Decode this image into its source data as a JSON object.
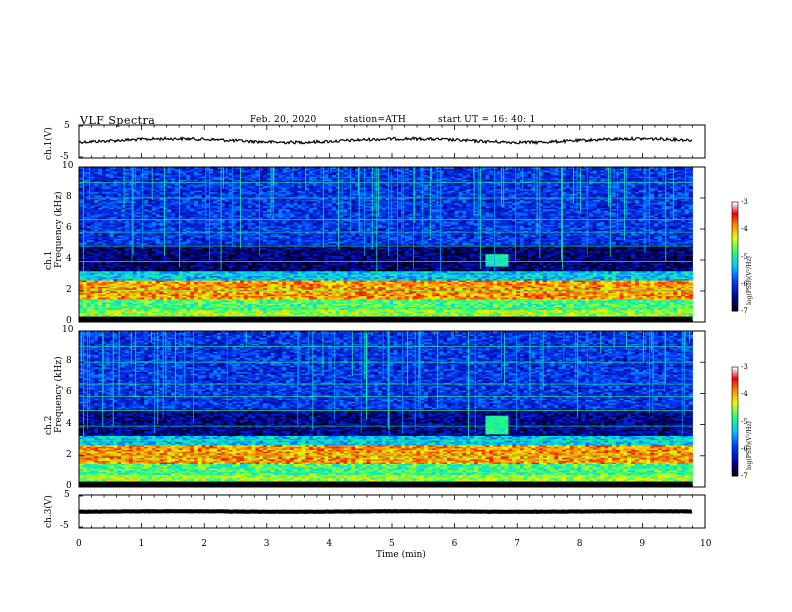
{
  "header": {
    "title": "VLF  Spectra",
    "date": "Feb. 20, 2020",
    "station": "station=ATH",
    "start": "start  UT  =    16: 40: 1"
  },
  "chart_data": [
    {
      "type": "line",
      "name": "ch1-waveform",
      "ylabel": "ch.1(V)",
      "ylim": [
        -5,
        5
      ],
      "ytick_labels": [
        "5",
        "-5"
      ],
      "x_range_min": [
        0,
        9.8
      ],
      "approx_level_v": 0.3
    },
    {
      "type": "heatmap",
      "name": "ch1-spectrogram",
      "ylabel": "ch.1\nFrequency  (kHz)",
      "ylim": [
        0,
        10
      ],
      "ytick_labels": [
        "0",
        "2",
        "4",
        "6",
        "8",
        "10"
      ],
      "xlim": [
        0,
        10
      ],
      "data_end_min": 9.8,
      "colorbar": {
        "label": "log(PSD)(V²/Hz)",
        "range": [
          -7,
          -3
        ],
        "tick_labels": [
          "-3",
          "-4",
          "-5",
          "-6",
          "-7"
        ]
      },
      "bands_khz": [
        {
          "from": 0.0,
          "to": 0.8,
          "level": -4.5
        },
        {
          "from": 0.8,
          "to": 1.5,
          "level": -4.8
        },
        {
          "from": 1.5,
          "to": 2.7,
          "level": -3.9
        },
        {
          "from": 2.7,
          "to": 3.3,
          "level": -5.3
        },
        {
          "from": 3.3,
          "to": 5.0,
          "level": -6.6
        },
        {
          "from": 5.0,
          "to": 10.0,
          "level": -6.0
        }
      ],
      "event": {
        "t_from_min": 6.45,
        "t_to_min": 6.8,
        "f_from_khz": 3.6,
        "f_to_khz": 4.3,
        "level": -5.0
      }
    },
    {
      "type": "heatmap",
      "name": "ch2-spectrogram",
      "ylabel": "ch.2\nFrequency  (kHz)",
      "ylim": [
        0,
        10
      ],
      "ytick_labels": [
        "0",
        "2",
        "4",
        "6",
        "8",
        "10"
      ],
      "xlim": [
        0,
        10
      ],
      "data_end_min": 9.8,
      "colorbar": {
        "label": "log(PSD)(V²/Hz)",
        "range": [
          -7,
          -3
        ],
        "tick_labels": [
          "-3",
          "-4",
          "-5",
          "-6",
          "-7"
        ]
      },
      "bands_khz": [
        {
          "from": 0.0,
          "to": 0.8,
          "level": -4.5
        },
        {
          "from": 0.8,
          "to": 1.5,
          "level": -4.8
        },
        {
          "from": 1.5,
          "to": 2.7,
          "level": -3.9
        },
        {
          "from": 2.7,
          "to": 3.3,
          "level": -5.3
        },
        {
          "from": 3.3,
          "to": 5.0,
          "level": -6.5
        },
        {
          "from": 5.0,
          "to": 10.0,
          "level": -6.0
        }
      ],
      "event": {
        "t_from_min": 6.45,
        "t_to_min": 6.8,
        "f_from_khz": 3.4,
        "f_to_khz": 4.5,
        "level": -4.9
      }
    },
    {
      "type": "line",
      "name": "ch3-waveform",
      "ylabel": "ch.3(V)",
      "ylim": [
        -5,
        5
      ],
      "ytick_labels": [
        "5",
        "-5"
      ],
      "x_range_min": [
        0,
        9.8
      ],
      "approx_level_v": 0.0,
      "xlabel": "Time  (min)",
      "xlim": [
        0,
        10
      ],
      "xtick_labels": [
        "0",
        "1",
        "2",
        "3",
        "4",
        "5",
        "6",
        "7",
        "8",
        "9",
        "10"
      ]
    }
  ]
}
